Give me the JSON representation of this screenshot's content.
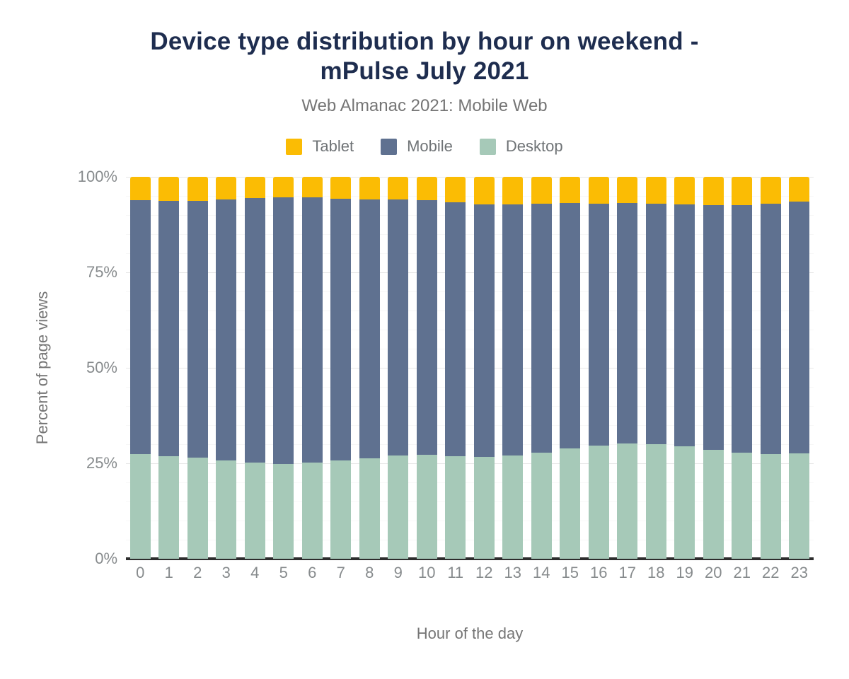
{
  "header": {
    "title_line1": "Device type distribution by hour on weekend -",
    "title_line2": "mPulse July 2021",
    "subtitle": "Web Almanac 2021: Mobile Web"
  },
  "chart_data": {
    "type": "bar",
    "stacked": true,
    "stack_total": 100,
    "title": "Device type distribution by hour on weekend - mPulse July 2021",
    "subtitle": "Web Almanac 2021: Mobile Web",
    "xlabel": "Hour of the day",
    "ylabel": "Percent of page views",
    "ylim": [
      0,
      100
    ],
    "y_ticks": [
      "0%",
      "25%",
      "50%",
      "75%",
      "100%"
    ],
    "legend_position": "top",
    "grid": {
      "major_every": 25,
      "minor_every": 5
    },
    "categories": [
      0,
      1,
      2,
      3,
      4,
      5,
      6,
      7,
      8,
      9,
      10,
      11,
      12,
      13,
      14,
      15,
      16,
      17,
      18,
      19,
      20,
      21,
      22,
      23
    ],
    "series": [
      {
        "name": "Tablet",
        "color": "#fbbc04",
        "values": [
          6.1,
          6.3,
          6.2,
          5.9,
          5.6,
          5.3,
          5.4,
          5.8,
          5.9,
          5.9,
          6.1,
          6.7,
          7.2,
          7.2,
          7.0,
          6.9,
          7.0,
          6.9,
          7.1,
          7.3,
          7.4,
          7.4,
          7.1,
          6.4
        ]
      },
      {
        "name": "Mobile",
        "color": "#5f7190",
        "values": [
          66.4,
          66.8,
          67.4,
          68.4,
          69.2,
          69.8,
          69.4,
          68.5,
          67.8,
          67.1,
          66.6,
          66.5,
          66.2,
          65.7,
          65.2,
          64.2,
          63.3,
          63.0,
          62.9,
          63.3,
          64.0,
          64.9,
          65.4,
          66.0
        ]
      },
      {
        "name": "Desktop",
        "color": "#a6c9b8",
        "values": [
          27.5,
          26.9,
          26.4,
          25.7,
          25.2,
          24.9,
          25.2,
          25.7,
          26.3,
          27.0,
          27.3,
          26.8,
          26.6,
          27.1,
          27.8,
          28.9,
          29.7,
          30.1,
          30.0,
          29.4,
          28.6,
          27.7,
          27.5,
          27.6
        ]
      }
    ],
    "colors": {
      "title": "#1e2d4f",
      "axis_line": "#2d2d2d",
      "gridline_major": "#e6e6e6",
      "gridline_minor": "#f7f7f7",
      "tick_text": "#878b8d",
      "label_text": "#757575"
    }
  }
}
